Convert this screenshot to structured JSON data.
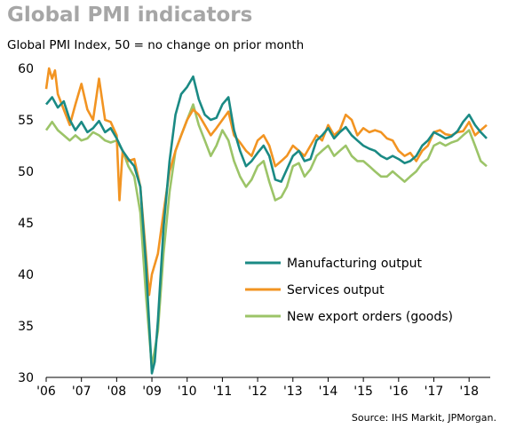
{
  "chart_data": {
    "type": "line",
    "title": "Global PMI indicators",
    "subtitle": "Global PMI Index, 50 = no change on prior month",
    "source": "Source: IHS Markit, JPMorgan.",
    "xlabel": "",
    "ylabel": "",
    "x_range": [
      2006.0,
      2018.6
    ],
    "ylim": [
      30,
      60
    ],
    "y_ticks": [
      30,
      35,
      40,
      45,
      50,
      55,
      60
    ],
    "x_ticks": [
      {
        "label": "'06",
        "x": 2006
      },
      {
        "label": "'07",
        "x": 2007
      },
      {
        "label": "'08",
        "x": 2008
      },
      {
        "label": "'09",
        "x": 2009
      },
      {
        "label": "'10",
        "x": 2010
      },
      {
        "label": "'11",
        "x": 2011
      },
      {
        "label": "'12",
        "x": 2012
      },
      {
        "label": "'13",
        "x": 2013
      },
      {
        "label": "'14",
        "x": 2014
      },
      {
        "label": "'15",
        "x": 2015
      },
      {
        "label": "'16",
        "x": 2016
      },
      {
        "label": "'17",
        "x": 2017
      },
      {
        "label": "'18",
        "x": 2018
      }
    ],
    "grid": false,
    "legend_position": "center-right",
    "series": [
      {
        "name": "Manufacturing output",
        "color": "#1a8a84",
        "points": [
          [
            2006.0,
            56.5
          ],
          [
            2006.17,
            57.2
          ],
          [
            2006.33,
            56.2
          ],
          [
            2006.5,
            56.8
          ],
          [
            2006.67,
            55.0
          ],
          [
            2006.83,
            54.0
          ],
          [
            2007.0,
            54.8
          ],
          [
            2007.17,
            53.8
          ],
          [
            2007.33,
            54.2
          ],
          [
            2007.5,
            54.9
          ],
          [
            2007.67,
            53.8
          ],
          [
            2007.83,
            54.2
          ],
          [
            2008.0,
            53.2
          ],
          [
            2008.17,
            52.0
          ],
          [
            2008.33,
            51.2
          ],
          [
            2008.5,
            50.5
          ],
          [
            2008.67,
            48.5
          ],
          [
            2008.83,
            41.0
          ],
          [
            2009.0,
            30.4
          ],
          [
            2009.08,
            31.5
          ],
          [
            2009.17,
            35.5
          ],
          [
            2009.33,
            44.5
          ],
          [
            2009.5,
            51.0
          ],
          [
            2009.67,
            55.5
          ],
          [
            2009.83,
            57.5
          ],
          [
            2010.0,
            58.2
          ],
          [
            2010.17,
            59.2
          ],
          [
            2010.33,
            57.0
          ],
          [
            2010.5,
            55.5
          ],
          [
            2010.67,
            55.0
          ],
          [
            2010.83,
            55.2
          ],
          [
            2011.0,
            56.5
          ],
          [
            2011.17,
            57.2
          ],
          [
            2011.33,
            54.0
          ],
          [
            2011.5,
            52.0
          ],
          [
            2011.67,
            50.5
          ],
          [
            2011.83,
            51.0
          ],
          [
            2012.0,
            51.8
          ],
          [
            2012.17,
            52.5
          ],
          [
            2012.33,
            51.5
          ],
          [
            2012.5,
            49.2
          ],
          [
            2012.67,
            49.0
          ],
          [
            2012.83,
            50.2
          ],
          [
            2013.0,
            51.5
          ],
          [
            2013.17,
            52.0
          ],
          [
            2013.33,
            51.0
          ],
          [
            2013.5,
            51.2
          ],
          [
            2013.67,
            53.0
          ],
          [
            2013.83,
            53.5
          ],
          [
            2014.0,
            54.2
          ],
          [
            2014.17,
            53.2
          ],
          [
            2014.33,
            53.8
          ],
          [
            2014.5,
            54.3
          ],
          [
            2014.67,
            53.5
          ],
          [
            2014.83,
            53.0
          ],
          [
            2015.0,
            52.5
          ],
          [
            2015.17,
            52.2
          ],
          [
            2015.33,
            52.0
          ],
          [
            2015.5,
            51.5
          ],
          [
            2015.67,
            51.2
          ],
          [
            2015.83,
            51.5
          ],
          [
            2016.0,
            51.2
          ],
          [
            2016.17,
            50.8
          ],
          [
            2016.33,
            51.0
          ],
          [
            2016.5,
            51.5
          ],
          [
            2016.67,
            52.5
          ],
          [
            2016.83,
            53.0
          ],
          [
            2017.0,
            53.8
          ],
          [
            2017.17,
            53.5
          ],
          [
            2017.33,
            53.2
          ],
          [
            2017.5,
            53.4
          ],
          [
            2017.67,
            53.9
          ],
          [
            2017.83,
            54.8
          ],
          [
            2018.0,
            55.5
          ],
          [
            2018.17,
            54.5
          ],
          [
            2018.33,
            53.8
          ],
          [
            2018.5,
            53.2
          ]
        ]
      },
      {
        "name": "Services output",
        "color": "#f29422",
        "points": [
          [
            2006.0,
            58.0
          ],
          [
            2006.08,
            60.0
          ],
          [
            2006.17,
            59.0
          ],
          [
            2006.25,
            59.8
          ],
          [
            2006.33,
            57.5
          ],
          [
            2006.5,
            56.0
          ],
          [
            2006.67,
            54.5
          ],
          [
            2006.83,
            56.5
          ],
          [
            2007.0,
            58.5
          ],
          [
            2007.17,
            56.0
          ],
          [
            2007.33,
            55.0
          ],
          [
            2007.5,
            59.0
          ],
          [
            2007.67,
            55.0
          ],
          [
            2007.83,
            54.8
          ],
          [
            2008.0,
            53.5
          ],
          [
            2008.08,
            47.2
          ],
          [
            2008.17,
            52.0
          ],
          [
            2008.33,
            51.0
          ],
          [
            2008.5,
            51.2
          ],
          [
            2008.67,
            48.5
          ],
          [
            2008.83,
            42.0
          ],
          [
            2008.92,
            38.0
          ],
          [
            2009.0,
            40.0
          ],
          [
            2009.17,
            42.0
          ],
          [
            2009.33,
            46.0
          ],
          [
            2009.5,
            50.0
          ],
          [
            2009.67,
            52.0
          ],
          [
            2009.83,
            53.5
          ],
          [
            2010.0,
            55.0
          ],
          [
            2010.17,
            56.0
          ],
          [
            2010.33,
            55.5
          ],
          [
            2010.5,
            54.5
          ],
          [
            2010.67,
            53.5
          ],
          [
            2010.83,
            54.2
          ],
          [
            2011.0,
            55.0
          ],
          [
            2011.17,
            55.8
          ],
          [
            2011.33,
            53.5
          ],
          [
            2011.5,
            52.8
          ],
          [
            2011.67,
            52.0
          ],
          [
            2011.83,
            51.5
          ],
          [
            2012.0,
            53.0
          ],
          [
            2012.17,
            53.5
          ],
          [
            2012.33,
            52.5
          ],
          [
            2012.5,
            50.5
          ],
          [
            2012.67,
            51.0
          ],
          [
            2012.83,
            51.5
          ],
          [
            2013.0,
            52.5
          ],
          [
            2013.17,
            52.0
          ],
          [
            2013.33,
            51.5
          ],
          [
            2013.5,
            52.5
          ],
          [
            2013.67,
            53.5
          ],
          [
            2013.83,
            53.0
          ],
          [
            2014.0,
            54.5
          ],
          [
            2014.17,
            53.5
          ],
          [
            2014.33,
            54.0
          ],
          [
            2014.5,
            55.5
          ],
          [
            2014.67,
            55.0
          ],
          [
            2014.83,
            53.5
          ],
          [
            2015.0,
            54.2
          ],
          [
            2015.17,
            53.8
          ],
          [
            2015.33,
            54.0
          ],
          [
            2015.5,
            53.8
          ],
          [
            2015.67,
            53.2
          ],
          [
            2015.83,
            53.0
          ],
          [
            2016.0,
            52.0
          ],
          [
            2016.17,
            51.5
          ],
          [
            2016.33,
            51.8
          ],
          [
            2016.5,
            51.0
          ],
          [
            2016.67,
            52.0
          ],
          [
            2016.83,
            52.5
          ],
          [
            2017.0,
            53.8
          ],
          [
            2017.17,
            54.0
          ],
          [
            2017.33,
            53.6
          ],
          [
            2017.5,
            53.5
          ],
          [
            2017.67,
            53.8
          ],
          [
            2017.83,
            53.9
          ],
          [
            2018.0,
            54.8
          ],
          [
            2018.17,
            53.5
          ],
          [
            2018.33,
            54.0
          ],
          [
            2018.5,
            54.5
          ]
        ]
      },
      {
        "name": "New export orders (goods)",
        "color": "#9cc468",
        "points": [
          [
            2006.0,
            54.0
          ],
          [
            2006.17,
            54.8
          ],
          [
            2006.33,
            54.0
          ],
          [
            2006.5,
            53.5
          ],
          [
            2006.67,
            53.0
          ],
          [
            2006.83,
            53.5
          ],
          [
            2007.0,
            53.0
          ],
          [
            2007.17,
            53.2
          ],
          [
            2007.33,
            53.8
          ],
          [
            2007.5,
            53.5
          ],
          [
            2007.67,
            53.0
          ],
          [
            2007.83,
            52.8
          ],
          [
            2008.0,
            53.0
          ],
          [
            2008.17,
            52.0
          ],
          [
            2008.33,
            50.5
          ],
          [
            2008.5,
            49.5
          ],
          [
            2008.67,
            46.0
          ],
          [
            2008.83,
            38.0
          ],
          [
            2009.0,
            31.0
          ],
          [
            2009.17,
            34.5
          ],
          [
            2009.33,
            42.0
          ],
          [
            2009.5,
            48.0
          ],
          [
            2009.67,
            52.0
          ],
          [
            2009.83,
            53.5
          ],
          [
            2010.0,
            55.0
          ],
          [
            2010.17,
            56.5
          ],
          [
            2010.33,
            54.5
          ],
          [
            2010.5,
            53.0
          ],
          [
            2010.67,
            51.5
          ],
          [
            2010.83,
            52.5
          ],
          [
            2011.0,
            54.0
          ],
          [
            2011.17,
            53.0
          ],
          [
            2011.33,
            51.0
          ],
          [
            2011.5,
            49.5
          ],
          [
            2011.67,
            48.5
          ],
          [
            2011.83,
            49.2
          ],
          [
            2012.0,
            50.5
          ],
          [
            2012.17,
            51.0
          ],
          [
            2012.33,
            49.0
          ],
          [
            2012.5,
            47.2
          ],
          [
            2012.67,
            47.5
          ],
          [
            2012.83,
            48.5
          ],
          [
            2013.0,
            50.5
          ],
          [
            2013.17,
            50.8
          ],
          [
            2013.33,
            49.5
          ],
          [
            2013.5,
            50.2
          ],
          [
            2013.67,
            51.5
          ],
          [
            2013.83,
            52.0
          ],
          [
            2014.0,
            52.5
          ],
          [
            2014.17,
            51.5
          ],
          [
            2014.33,
            52.0
          ],
          [
            2014.5,
            52.5
          ],
          [
            2014.67,
            51.5
          ],
          [
            2014.83,
            51.0
          ],
          [
            2015.0,
            51.0
          ],
          [
            2015.17,
            50.5
          ],
          [
            2015.33,
            50.0
          ],
          [
            2015.5,
            49.5
          ],
          [
            2015.67,
            49.5
          ],
          [
            2015.83,
            50.0
          ],
          [
            2016.0,
            49.5
          ],
          [
            2016.17,
            49.0
          ],
          [
            2016.33,
            49.5
          ],
          [
            2016.5,
            50.0
          ],
          [
            2016.67,
            50.8
          ],
          [
            2016.83,
            51.2
          ],
          [
            2017.0,
            52.5
          ],
          [
            2017.17,
            52.8
          ],
          [
            2017.33,
            52.5
          ],
          [
            2017.5,
            52.8
          ],
          [
            2017.67,
            53.0
          ],
          [
            2017.83,
            53.5
          ],
          [
            2018.0,
            54.0
          ],
          [
            2018.17,
            52.5
          ],
          [
            2018.33,
            51.0
          ],
          [
            2018.5,
            50.5
          ]
        ]
      }
    ]
  }
}
